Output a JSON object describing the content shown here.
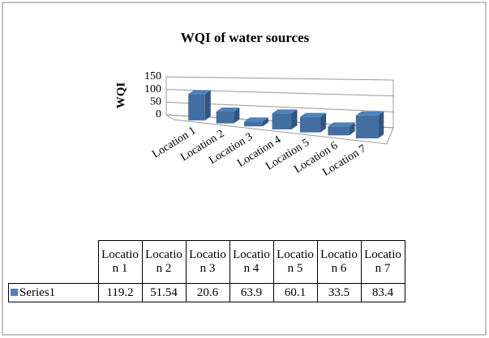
{
  "chart_data": {
    "type": "bar3d",
    "title": "WQI of water sources",
    "y_label": "WQI",
    "categories": [
      "Location 1",
      "Location 2",
      "Location 3",
      "Location 4",
      "Location 5",
      "Location 6",
      "Location 7"
    ],
    "series": [
      {
        "name": "Series1",
        "color": "#4f81bd",
        "values": [
          119.2,
          51.54,
          20.6,
          63.9,
          60.1,
          33.5,
          83.4
        ]
      }
    ],
    "ylim": [
      0,
      150
    ],
    "yticks": [
      0,
      50,
      100,
      150
    ],
    "grid": true,
    "data_table": true
  }
}
